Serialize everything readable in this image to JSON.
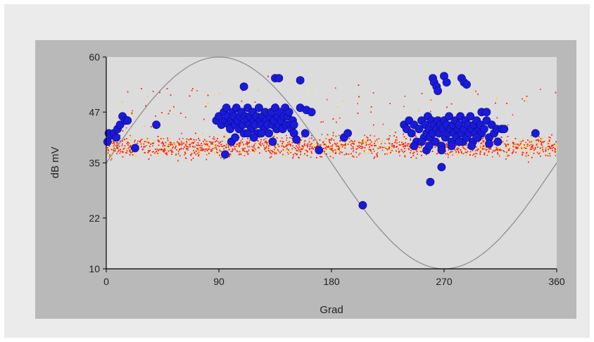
{
  "chart_data": {
    "type": "scatter",
    "title": "",
    "xlabel": "Grad",
    "ylabel": "dB mV",
    "xlim": [
      0,
      360
    ],
    "ylim": [
      10,
      60
    ],
    "xticks": [
      0,
      90,
      180,
      270,
      360
    ],
    "yticks": [
      10,
      22,
      35,
      47,
      60
    ],
    "grid": false,
    "legend": "none",
    "colors": {
      "plot_background": "#dcdcdc",
      "panel_background": "#b9b9b9",
      "page_background": "#ebebeb",
      "noise": "#ff2a00",
      "noise_highlight": "#ffd400",
      "markers": "#1a1adb",
      "sine": "#8a8a8a"
    },
    "series": [
      {
        "kind": "noise-band",
        "center_db": 39,
        "spread_db": 2.2,
        "x_range": [
          0,
          360
        ]
      },
      {
        "kind": "reference-sine",
        "amplitude_db": 25,
        "offset_db": 35,
        "peak_deg": 90,
        "trough_deg": 270
      },
      {
        "kind": "discharge-points",
        "points": [
          [
            1,
            40
          ],
          [
            2,
            42
          ],
          [
            4,
            41.5
          ],
          [
            6,
            42
          ],
          [
            8,
            41
          ],
          [
            9,
            43
          ],
          [
            11,
            44
          ],
          [
            13,
            46
          ],
          [
            15,
            45
          ],
          [
            17,
            45
          ],
          [
            23,
            38.5
          ],
          [
            40,
            44
          ],
          [
            88,
            45
          ],
          [
            90,
            46
          ],
          [
            92,
            44
          ],
          [
            94,
            47
          ],
          [
            95,
            45
          ],
          [
            96,
            48
          ],
          [
            97,
            46
          ],
          [
            98,
            44
          ],
          [
            99,
            43
          ],
          [
            100,
            45
          ],
          [
            101,
            47
          ],
          [
            102,
            46
          ],
          [
            103,
            44
          ],
          [
            104,
            48
          ],
          [
            105,
            45
          ],
          [
            106,
            43
          ],
          [
            107,
            46
          ],
          [
            108,
            47
          ],
          [
            109,
            44
          ],
          [
            110,
            42
          ],
          [
            111,
            46
          ],
          [
            112,
            45
          ],
          [
            113,
            48
          ],
          [
            114,
            44
          ],
          [
            115,
            46
          ],
          [
            116,
            43
          ],
          [
            117,
            47
          ],
          [
            118,
            45
          ],
          [
            119,
            44
          ],
          [
            120,
            46
          ],
          [
            121,
            42
          ],
          [
            122,
            48
          ],
          [
            123,
            45
          ],
          [
            124,
            44
          ],
          [
            125,
            46
          ],
          [
            126,
            43
          ],
          [
            127,
            47
          ],
          [
            128,
            45
          ],
          [
            129,
            44
          ],
          [
            130,
            42
          ],
          [
            131,
            46
          ],
          [
            132,
            47
          ],
          [
            133,
            44
          ],
          [
            134,
            45
          ],
          [
            135,
            48
          ],
          [
            136,
            43
          ],
          [
            137,
            46
          ],
          [
            138,
            44
          ],
          [
            139,
            47
          ],
          [
            140,
            45
          ],
          [
            141,
            43
          ],
          [
            142,
            46
          ],
          [
            143,
            48
          ],
          [
            144,
            44
          ],
          [
            145,
            46
          ],
          [
            146,
            47
          ],
          [
            147,
            44
          ],
          [
            148,
            43
          ],
          [
            149,
            45
          ],
          [
            150,
            44
          ],
          [
            155,
            48
          ],
          [
            160,
            47.5
          ],
          [
            164,
            47
          ],
          [
            95,
            37
          ],
          [
            100,
            40
          ],
          [
            103,
            41
          ],
          [
            110,
            53
          ],
          [
            113,
            42
          ],
          [
            118,
            41
          ],
          [
            124,
            42
          ],
          [
            133,
            40
          ],
          [
            135,
            55
          ],
          [
            138,
            55
          ],
          [
            150,
            42
          ],
          [
            152,
            40.5
          ],
          [
            155,
            54.5
          ],
          [
            159,
            42
          ],
          [
            170,
            38
          ],
          [
            190,
            41
          ],
          [
            193,
            42
          ],
          [
            205,
            25
          ],
          [
            238,
            44
          ],
          [
            240,
            43
          ],
          [
            242,
            45
          ],
          [
            244,
            42
          ],
          [
            246,
            44
          ],
          [
            248,
            40
          ],
          [
            250,
            43
          ],
          [
            252,
            45
          ],
          [
            254,
            41
          ],
          [
            255,
            44
          ],
          [
            256,
            42
          ],
          [
            257,
            46
          ],
          [
            258,
            43
          ],
          [
            259,
            41
          ],
          [
            260,
            45
          ],
          [
            261,
            42
          ],
          [
            262,
            44
          ],
          [
            263,
            40
          ],
          [
            264,
            43
          ],
          [
            265,
            45
          ],
          [
            266,
            42
          ],
          [
            267,
            44
          ],
          [
            268,
            39
          ],
          [
            269,
            43
          ],
          [
            270,
            45
          ],
          [
            271,
            41
          ],
          [
            272,
            44
          ],
          [
            273,
            42
          ],
          [
            274,
            46
          ],
          [
            275,
            43
          ],
          [
            276,
            40
          ],
          [
            277,
            44
          ],
          [
            278,
            42
          ],
          [
            279,
            45
          ],
          [
            280,
            41
          ],
          [
            281,
            43
          ],
          [
            282,
            44
          ],
          [
            283,
            46
          ],
          [
            284,
            42
          ],
          [
            285,
            40
          ],
          [
            286,
            43
          ],
          [
            287,
            45
          ],
          [
            288,
            41
          ],
          [
            289,
            44
          ],
          [
            290,
            42
          ],
          [
            291,
            46
          ],
          [
            292,
            43
          ],
          [
            293,
            40
          ],
          [
            294,
            44
          ],
          [
            295,
            42
          ],
          [
            296,
            45
          ],
          [
            297,
            41
          ],
          [
            298,
            43
          ],
          [
            299,
            44
          ],
          [
            300,
            42
          ],
          [
            302,
            43
          ],
          [
            304,
            45
          ],
          [
            306,
            41
          ],
          [
            308,
            44
          ],
          [
            310,
            42
          ],
          [
            312,
            43
          ],
          [
            316,
            43
          ],
          [
            246,
            39
          ],
          [
            252,
            40
          ],
          [
            256,
            38
          ],
          [
            258,
            39
          ],
          [
            261,
            55
          ],
          [
            262,
            54
          ],
          [
            264,
            53
          ],
          [
            265,
            52
          ],
          [
            268,
            38
          ],
          [
            270,
            55.5
          ],
          [
            272,
            54
          ],
          [
            276,
            39
          ],
          [
            282,
            40
          ],
          [
            284,
            55
          ],
          [
            286,
            54
          ],
          [
            288,
            53.5
          ],
          [
            292,
            39
          ],
          [
            296,
            41
          ],
          [
            300,
            47
          ],
          [
            304,
            47
          ],
          [
            306,
            39.5
          ],
          [
            313,
            40
          ],
          [
            318,
            43
          ],
          [
            343,
            42
          ],
          [
            259,
            30.5
          ],
          [
            268,
            34
          ]
        ]
      }
    ]
  }
}
